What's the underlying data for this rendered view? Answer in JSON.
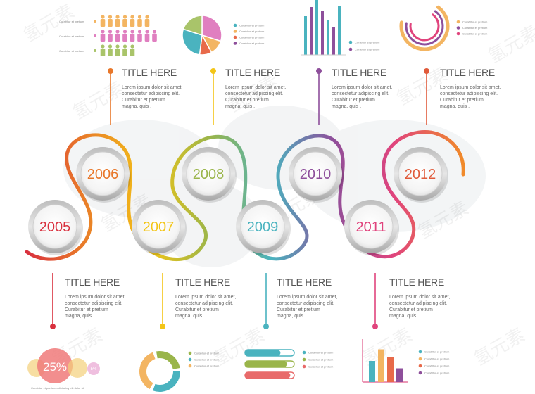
{
  "colors": {
    "red": "#d9303e",
    "orange": "#e8772a",
    "yellow": "#f3c517",
    "green": "#9ab54a",
    "teal": "#4ab3bf",
    "purple": "#8e4f9b",
    "pink": "#e0447d",
    "coral": "#e05a3a"
  },
  "watermark": "氢元素",
  "milestones": [
    {
      "year": "2005",
      "color": "#d9303e"
    },
    {
      "year": "2006",
      "color": "#e8772a"
    },
    {
      "year": "2007",
      "color": "#f3c517"
    },
    {
      "year": "2008",
      "color": "#9ab54a"
    },
    {
      "year": "2009",
      "color": "#4ab3bf"
    },
    {
      "year": "2010",
      "color": "#8e4f9b"
    },
    {
      "year": "2011",
      "color": "#e0447d"
    },
    {
      "year": "2012",
      "color": "#e05a3a"
    }
  ],
  "top_blocks": [
    {
      "title": "TITLE HERE",
      "lines": [
        "Lorem ipsum dolor sit amet,",
        "consectetur adipiscing elit.",
        "Curabitur et pretium",
        "magna, quis ."
      ]
    },
    {
      "title": "TITLE HERE",
      "lines": [
        "Lorem ipsum dolor sit amet,",
        "consectetur adipiscing elit.",
        "Curabitur et pretium",
        "magna, quis ."
      ]
    },
    {
      "title": "TITLE HERE",
      "lines": [
        "Lorem ipsum dolor sit amet,",
        "consectetur adipiscing elit.",
        "Curabitur et pretium",
        "magna, quis ."
      ]
    },
    {
      "title": "TITLE HERE",
      "lines": [
        "Lorem ipsum dolor sit amet,",
        "consectetur adipiscing elit.",
        "Curabitur et pretium",
        "magna, quis ."
      ]
    }
  ],
  "bottom_blocks": [
    {
      "title": "TITLE HERE",
      "lines": [
        "Lorem ipsum dolor sit amet,",
        "consectetur adipiscing elit.",
        "Curabitur et pretium",
        "magna, quis ."
      ]
    },
    {
      "title": "TITLE HERE",
      "lines": [
        "Lorem ipsum dolor sit amet,",
        "consectetur adipiscing elit.",
        "Curabitur et pretium",
        "magna, quis ."
      ]
    },
    {
      "title": "TITLE HERE",
      "lines": [
        "Lorem ipsum dolor sit amet,",
        "consectetur adipiscing elit.",
        "Curabitur et pretium",
        "magna, quis ."
      ]
    },
    {
      "title": "TITLE HERE",
      "lines": [
        "Lorem ipsum dolor sit amet,",
        "consectetur adipiscing elit.",
        "Curabitur et pretium",
        "magna, quis ."
      ]
    }
  ],
  "legend_text": "Curabitur et pretium",
  "people_rows": [
    {
      "count": 7,
      "color": "#f3b562"
    },
    {
      "count": 8,
      "color": "#e07fc0"
    },
    {
      "count": 5,
      "color": "#a9c46a"
    }
  ],
  "pie_slices": [
    {
      "value": 30,
      "color": "#e07fc0"
    },
    {
      "value": 12,
      "color": "#f3b562"
    },
    {
      "value": 10,
      "color": "#e86a4a"
    },
    {
      "value": 28,
      "color": "#4ab3bf"
    },
    {
      "value": 20,
      "color": "#a9c46a"
    }
  ],
  "top_bars": [
    {
      "value": 55,
      "color": "#4ab3bf"
    },
    {
      "value": 68,
      "color": "#8e4f9b"
    },
    {
      "value": 80,
      "color": "#4ab3bf"
    },
    {
      "value": 62,
      "color": "#8e4f9b"
    },
    {
      "value": 50,
      "color": "#4ab3bf"
    },
    {
      "value": 40,
      "color": "#8e4f9b"
    },
    {
      "value": 70,
      "color": "#4ab3bf"
    }
  ],
  "top_bars_legend": [
    {
      "color": "#4ab3bf"
    },
    {
      "color": "#8e4f9b"
    }
  ],
  "arcs_legend": [
    {
      "color": "#f3b562"
    },
    {
      "color": "#8e4f9b"
    },
    {
      "color": "#e0447d"
    }
  ],
  "pie_legend": [
    {
      "color": "#4ab3bf"
    },
    {
      "color": "#f3b562"
    },
    {
      "color": "#e86a4a"
    },
    {
      "color": "#8e4f9b"
    }
  ],
  "bubbles": {
    "main_label": "25%",
    "side_label": "5%",
    "caption": "Curabitur et pretium adipiscing elit dolor sit"
  },
  "donut_legend": [
    {
      "color": "#9ab54a"
    },
    {
      "color": "#4ab3bf"
    },
    {
      "color": "#f3b562"
    }
  ],
  "pill_bars": [
    {
      "color": "#4ab3bf",
      "fill": 0.72
    },
    {
      "color": "#9ab54a",
      "fill": 0.85
    },
    {
      "color": "#e86a6a",
      "fill": 0.92
    }
  ],
  "pill_legend": [
    {
      "color": "#4ab3bf"
    },
    {
      "color": "#9ab54a"
    },
    {
      "color": "#e86a6a"
    }
  ],
  "bottom_bars": [
    {
      "value": 40,
      "color": "#4ab3bf"
    },
    {
      "value": 62,
      "color": "#f3b562"
    },
    {
      "value": 48,
      "color": "#e86a4a"
    },
    {
      "value": 26,
      "color": "#8e4f9b"
    }
  ],
  "bottom_bars_legend": [
    {
      "color": "#4ab3bf"
    },
    {
      "color": "#f3b562"
    },
    {
      "color": "#e86a4a"
    },
    {
      "color": "#8e4f9b"
    }
  ]
}
